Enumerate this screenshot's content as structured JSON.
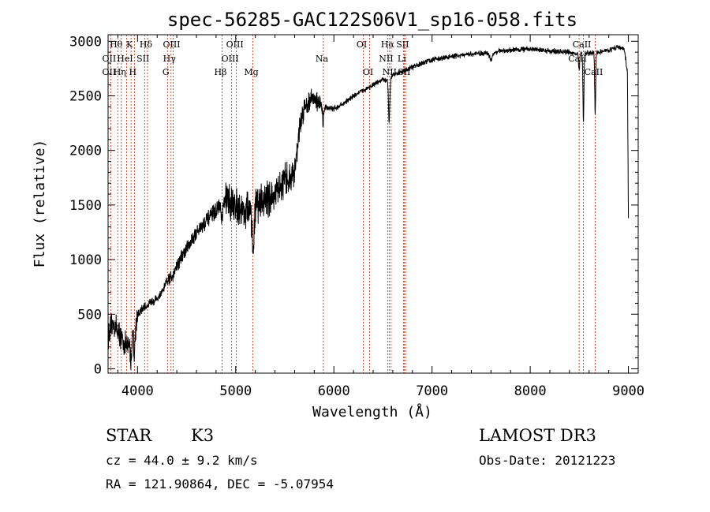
{
  "chart_data": {
    "type": "line",
    "title": "spec-56285-GAC122S06V1_sp16-058.fits",
    "xlabel": "Wavelength (Å)",
    "ylabel": "Flux (relative)",
    "xlim": [
      3700,
      9100
    ],
    "ylim": [
      -40,
      3060
    ],
    "x_ticks": [
      4000,
      5000,
      6000,
      7000,
      8000,
      9000
    ],
    "y_ticks": [
      0,
      500,
      1000,
      1500,
      2000,
      2500,
      3000
    ],
    "grid": false,
    "line_color": "#000000",
    "marker_color": "#cc2200",
    "spectrum_anchors": {
      "x": [
        3700,
        3750,
        3800,
        3850,
        3900,
        3950,
        4000,
        4050,
        4100,
        4150,
        4200,
        4250,
        4300,
        4350,
        4400,
        4500,
        4600,
        4700,
        4800,
        4860,
        4900,
        5000,
        5100,
        5200,
        5300,
        5400,
        5500,
        5600,
        5650,
        5700,
        5750,
        5800,
        5850,
        5900,
        6000,
        6100,
        6200,
        6300,
        6400,
        6500,
        6560,
        6600,
        6700,
        6800,
        6900,
        7000,
        7200,
        7400,
        7600,
        7800,
        8000,
        8200,
        8400,
        8500,
        8600,
        8700,
        8800,
        8900,
        8960,
        8990,
        9000
      ],
      "y": [
        300,
        420,
        350,
        250,
        200,
        380,
        480,
        550,
        580,
        620,
        640,
        700,
        800,
        850,
        950,
        1100,
        1250,
        1350,
        1450,
        1500,
        1550,
        1500,
        1450,
        1500,
        1550,
        1600,
        1700,
        1800,
        2200,
        2400,
        2450,
        2500,
        2420,
        2400,
        2380,
        2430,
        2500,
        2550,
        2600,
        2650,
        2620,
        2700,
        2720,
        2760,
        2800,
        2830,
        2860,
        2880,
        2900,
        2920,
        2930,
        2910,
        2900,
        2880,
        2890,
        2900,
        2920,
        2950,
        2920,
        2700,
        1400
      ]
    },
    "noise_segments": [
      [
        3700,
        4000,
        140
      ],
      [
        4000,
        4300,
        50
      ],
      [
        4300,
        4900,
        90
      ],
      [
        4900,
        5600,
        200
      ],
      [
        5600,
        5900,
        120
      ],
      [
        5900,
        9000,
        30
      ]
    ],
    "absorption_features": [
      [
        6563,
        380,
        6
      ],
      [
        8498,
        150,
        5
      ],
      [
        8542,
        620,
        5
      ],
      [
        8662,
        550,
        5
      ],
      [
        5170,
        260,
        10
      ],
      [
        5183,
        300,
        6
      ],
      [
        5890,
        120,
        8
      ],
      [
        3934,
        250,
        8
      ],
      [
        3968,
        250,
        8
      ],
      [
        4861,
        150,
        8
      ],
      [
        7600,
        70,
        15
      ]
    ],
    "lines": [
      {
        "label": "Hθ",
        "x": 3798,
        "row": 1
      },
      {
        "label": "OII",
        "x": 3727,
        "row": 2
      },
      {
        "label": "OII",
        "x": 3727,
        "row": 3
      },
      {
        "label": "Hη",
        "x": 3835,
        "row": 3
      },
      {
        "label": "HeI",
        "x": 3889,
        "row": 2
      },
      {
        "label": "K",
        "x": 3934,
        "row": 1
      },
      {
        "label": "SII",
        "x": 4072,
        "row": 2
      },
      {
        "label": "H",
        "x": 3968,
        "row": 3
      },
      {
        "label": "Hδ",
        "x": 4102,
        "row": 1
      },
      {
        "label": "OIII",
        "x": 4363,
        "row": 1
      },
      {
        "label": "Hγ",
        "x": 4341,
        "row": 2
      },
      {
        "label": "G",
        "x": 4305,
        "row": 3
      },
      {
        "label": "Hβ",
        "x": 4861,
        "row": 3
      },
      {
        "label": "OIII",
        "x": 5007,
        "row": 1
      },
      {
        "label": "OIII",
        "x": 4959,
        "row": 2
      },
      {
        "label": "Mg",
        "x": 5175,
        "row": 3
      },
      {
        "label": "Na",
        "x": 5893,
        "row": 2
      },
      {
        "label": "OI",
        "x": 6300,
        "row": 1
      },
      {
        "label": "OI",
        "x": 6364,
        "row": 3
      },
      {
        "label": "Hα",
        "x": 6563,
        "row": 1
      },
      {
        "label": "SII",
        "x": 6716,
        "row": 1
      },
      {
        "label": "NII",
        "x": 6548,
        "row": 2
      },
      {
        "label": "Li",
        "x": 6708,
        "row": 2
      },
      {
        "label": "NII",
        "x": 6583,
        "row": 3
      },
      {
        "label": "SII",
        "x": 6731,
        "row": 3
      },
      {
        "label": "CaII",
        "x": 8542,
        "row": 1
      },
      {
        "label": "CaII",
        "x": 8498,
        "row": 2
      },
      {
        "label": "CaII",
        "x": 8662,
        "row": 3
      }
    ]
  },
  "info": {
    "class_label": "STAR",
    "subclass": "K3",
    "survey": "LAMOST DR3",
    "cz": "cz = 44.0 ± 9.2 km/s",
    "obs_date": "Obs-Date: 20121223",
    "coords": "RA = 121.90864, DEC =  -5.07954"
  }
}
